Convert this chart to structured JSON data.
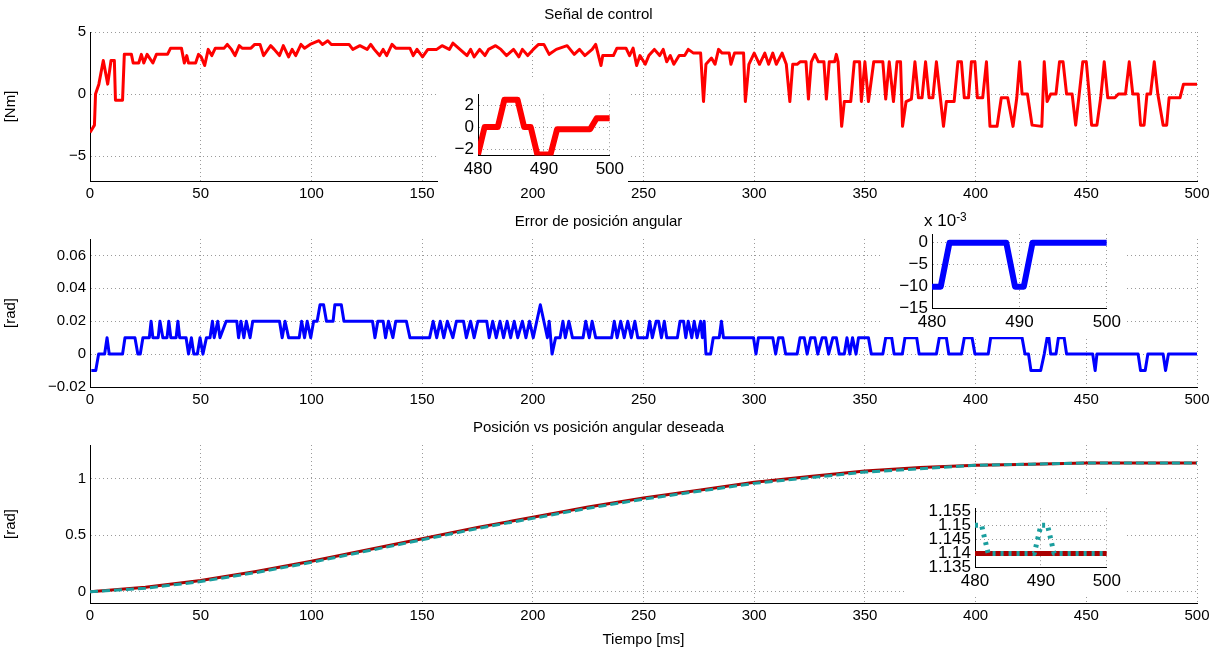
{
  "chart_data": [
    {
      "type": "line",
      "title": "Señal de control",
      "ylabel": "[Nm]",
      "xlim": [
        0,
        500
      ],
      "xticks": [
        0,
        50,
        100,
        150,
        200,
        250,
        300,
        350,
        400,
        450,
        500
      ],
      "ylim": [
        -7,
        5
      ],
      "yticks": [
        -5,
        0,
        5
      ],
      "grid": true,
      "line_style": "solid",
      "series": [
        {
          "color": "#ff0000",
          "x": [
            0,
            2,
            2.5,
            4,
            6,
            8,
            9.5,
            11,
            11.5,
            14.7,
            15.5,
            18.7,
            19.5,
            22,
            23.2,
            24.3,
            25.8,
            28.4,
            30,
            35,
            36.4,
            41.3,
            42.6,
            43.7,
            44.5,
            47.7,
            49,
            50.2,
            51.8,
            53.4,
            55,
            56.6,
            60.6,
            62,
            63.9,
            65.5,
            67.4,
            68.7,
            72.7,
            74.4,
            76.8,
            78.4,
            81.6,
            83.2,
            85.6,
            87.3,
            89.7,
            91.3,
            92.9,
            95.3,
            96.9,
            99.4,
            103.4,
            105,
            107.4,
            109,
            117,
            118.7,
            121.9,
            125.2,
            126.8,
            128.4,
            130.8,
            132.4,
            134,
            136.4,
            138.1,
            144.5,
            146,
            147.7,
            150.2,
            152.6,
            156.6,
            159,
            162.3,
            163.9,
            167.1,
            170.3,
            171.9,
            173.5,
            176,
            178.4,
            180,
            183.2,
            185.6,
            188.1,
            191.3,
            193.7,
            195.3,
            197.7,
            200.2,
            202.6,
            205,
            207.4,
            210.6,
            215.5,
            218.7,
            221.1,
            223.5,
            226.8,
            228.4,
            230.8,
            231.6,
            236.4,
            238,
            242.1,
            243.7,
            245.3,
            246.9,
            248.4,
            250.8,
            252.4,
            254.9,
            257.3,
            258.9,
            260.5,
            262.1,
            263.7,
            266.1,
            268.6,
            270.2,
            272.6,
            275.8,
            277.1,
            278.2,
            280.7,
            282.3,
            283.9,
            285.5,
            288.7,
            289.5,
            291.1,
            295.2,
            296,
            297.6,
            300,
            302.4,
            304.8,
            306.5,
            308.4,
            310,
            312.6,
            314.5,
            316.1,
            317.4,
            319.4,
            320.7,
            323.4,
            324.5,
            325.8,
            327.4,
            329,
            331.5,
            332.6,
            333.9,
            336.3,
            337.1,
            337.9,
            339.5,
            340.7,
            343.6,
            345.2,
            347.6,
            348.4,
            350,
            351.6,
            354,
            358.1,
            359.4,
            361,
            362.9,
            364.5,
            366.1,
            367,
            368.6,
            371,
            372.6,
            374.2,
            375.8,
            377.4,
            379,
            380.7,
            382.3,
            385.5,
            386.8,
            390.3,
            392,
            393.6,
            394.9,
            396.8,
            398.1,
            399.7,
            400.8,
            403.2,
            404.9,
            406.5,
            409.7,
            411.6,
            414.5,
            416.9,
            418.6,
            419.9,
            421,
            423.4,
            425.5,
            429.9,
            431,
            432.3,
            433.9,
            436.3,
            437.9,
            439.5,
            441.1,
            443.6,
            445.2,
            446.8,
            448.4,
            450,
            451.3,
            452.4,
            454.8,
            456.5,
            458.1,
            459.7,
            462.9,
            464.5,
            467.7,
            469.4,
            471,
            473.4,
            474.5,
            476.1,
            477.4,
            479,
            480.7,
            482.3,
            484.7,
            486.3,
            487.4,
            492.3,
            493.9,
            500
          ],
          "values": [
            -3.1,
            -2.5,
            0,
            0.8,
            2.7,
            0.8,
            2.7,
            2.7,
            -0.5,
            -0.5,
            3.2,
            3.2,
            2.5,
            2.5,
            3.2,
            2.5,
            3.2,
            2.5,
            3.2,
            3.2,
            3.7,
            3.7,
            2.5,
            3.1,
            2.5,
            2.5,
            3.2,
            3.0,
            2.3,
            3.6,
            3.1,
            3.7,
            3.7,
            4.0,
            3.6,
            3.1,
            3.9,
            3.7,
            3.7,
            4.0,
            4.0,
            3.1,
            3.9,
            3.6,
            3.1,
            3.9,
            3.0,
            3.6,
            3.1,
            4.0,
            3.7,
            4.0,
            4.3,
            4.0,
            4.3,
            4.0,
            4.0,
            3.6,
            3.9,
            3.6,
            4.0,
            3.6,
            3.1,
            3.6,
            3.1,
            4.0,
            3.7,
            3.7,
            3.1,
            3.6,
            3.0,
            3.6,
            3.6,
            3.9,
            3.6,
            4.1,
            3.6,
            3.1,
            3.6,
            3.0,
            3.6,
            3.1,
            3.6,
            3.9,
            3.6,
            3.1,
            3.6,
            3.0,
            3.6,
            3.1,
            3.6,
            4.0,
            4.0,
            3.2,
            3.6,
            3.9,
            3.2,
            3.6,
            3.1,
            3.6,
            4.0,
            2.3,
            3.1,
            3.1,
            3.7,
            3.7,
            3.1,
            3.7,
            2.3,
            3.1,
            2.4,
            3.1,
            3.6,
            3.1,
            3.6,
            2.6,
            3.1,
            2.4,
            3.1,
            3.1,
            3.6,
            3.3,
            3.3,
            -0.6,
            2.4,
            2.9,
            2.4,
            3.6,
            3.3,
            3.3,
            2.4,
            3.3,
            3.3,
            -0.6,
            2.4,
            3.3,
            2.4,
            3.3,
            2.4,
            3.3,
            2.4,
            3.3,
            2.4,
            -0.6,
            2.4,
            2.4,
            2.6,
            2.6,
            -0.4,
            2.6,
            3.2,
            2.6,
            2.6,
            -0.4,
            2.6,
            2.6,
            3.2,
            2.6,
            -2.6,
            -0.6,
            -0.6,
            2.6,
            2.6,
            -0.6,
            2.6,
            -0.6,
            2.6,
            2.6,
            -0.4,
            2.6,
            -0.6,
            2.6,
            2.6,
            -2.6,
            -0.6,
            -0.4,
            2.6,
            -0.3,
            -0.3,
            2.6,
            -0.3,
            -0.3,
            2.6,
            -2.6,
            -0.6,
            -0.6,
            2.6,
            2.6,
            -0.3,
            -0.3,
            2.6,
            2.6,
            -0.3,
            -0.3,
            2.6,
            -2.6,
            -2.6,
            -0.3,
            -0.3,
            -2.6,
            -0.3,
            2.6,
            0,
            0,
            -2.5,
            -2.6,
            2.6,
            -0.6,
            0,
            0,
            2.6,
            2.6,
            0,
            0,
            -2.5,
            0,
            2.6,
            2.6,
            0,
            -2.5,
            -2.5,
            -0.3,
            2.6,
            -0.3,
            -0.3,
            0,
            0,
            2.6,
            0,
            0,
            -2.5,
            -2.5,
            0,
            0,
            2.6,
            0,
            -2.5,
            -2.5,
            -0.3,
            -0.3,
            0.8,
            0.8
          ]
        }
      ]
    },
    {
      "type": "line",
      "xlim": [
        480,
        500
      ],
      "xticks": [
        480,
        490,
        500
      ],
      "ylim": [
        -2.6,
        3
      ],
      "yticks": [
        -2,
        0,
        2
      ],
      "grid": true,
      "line_style": "solid",
      "series": [
        {
          "color": "#ff0000",
          "x": [
            480,
            481,
            483,
            484,
            486,
            487,
            488,
            489,
            491,
            492,
            497,
            498,
            500
          ],
          "values": [
            -2.5,
            0,
            0,
            2.5,
            2.5,
            0,
            0,
            -2.5,
            -2.5,
            -0.2,
            -0.2,
            0.8,
            0.8
          ]
        }
      ]
    },
    {
      "type": "line",
      "title": "Error de posición angular",
      "ylabel": "[rad]",
      "xlim": [
        0,
        500
      ],
      "xticks": [
        0,
        50,
        100,
        150,
        200,
        250,
        300,
        350,
        400,
        450,
        500
      ],
      "ylim": [
        -0.02,
        0.07
      ],
      "yticks": [
        -0.02,
        0,
        0.02,
        0.04,
        0.06
      ],
      "grid": true,
      "line_style": "solid",
      "series": [
        {
          "color": "#0000ff",
          "x": [
            0.6,
            2.6,
            3.9,
            6.6,
            7.7,
            8.7,
            14.7,
            15.8,
            20.3,
            21.6,
            22.7,
            23.9,
            26.8,
            27.6,
            28.4,
            30.8,
            31.6,
            32.9,
            34.8,
            35.6,
            36.5,
            38.9,
            39.7,
            40.5,
            43.4,
            44.5,
            45.8,
            46.9,
            48.5,
            49.7,
            51,
            52.6,
            54.2,
            55.3,
            56.1,
            57.7,
            58.7,
            61.5,
            66.3,
            67.1,
            68.2,
            69.5,
            70.6,
            72.3,
            73.5,
            85.6,
            86.8,
            88.1,
            89.7,
            94.5,
            95.6,
            96.9,
            98.1,
            99.7,
            101,
            102.6,
            103.9,
            105.5,
            106.8,
            109.8,
            110.6,
            113.5,
            114.7,
            127.6,
            128.7,
            130,
            132.4,
            133.5,
            134.8,
            136.8,
            138.1,
            142.9,
            144.5,
            153.4,
            155,
            156.6,
            158.2,
            159.8,
            161.4,
            163.9,
            165.5,
            168.7,
            170,
            171.9,
            173.5,
            175.2,
            179.2,
            180.3,
            181.9,
            183.5,
            185.2,
            186.8,
            188.4,
            190,
            191.6,
            193.2,
            195.3,
            196.9,
            198.5,
            200.2,
            201.8,
            203.4,
            205,
            206.6,
            207.4,
            208.7,
            210.3,
            212.3,
            213.6,
            214.7,
            216.3,
            217.9,
            222.7,
            223.9,
            225.5,
            226.8,
            228.4,
            235.6,
            236.8,
            238.1,
            239.7,
            241.3,
            242.9,
            244.5,
            246.1,
            247.4,
            248.4,
            251.6,
            252.8,
            254,
            255.7,
            256.8,
            258.1,
            259.4,
            260.5,
            265.3,
            266.5,
            268.1,
            269.1,
            270.2,
            271.8,
            272.9,
            274.2,
            275.8,
            276.6,
            277.4,
            278.2,
            280.3,
            281.5,
            284.2,
            285.2,
            286.1,
            299.7,
            300.8,
            301.9,
            308.4,
            309.7,
            311,
            312.9,
            314.2,
            319.4,
            320.7,
            322.6,
            323.9,
            325.5,
            327.4,
            328.7,
            330.7,
            332.3,
            333.6,
            335.5,
            337.1,
            338.4,
            340.7,
            341.9,
            343.2,
            344.4,
            346,
            347.1,
            351.6,
            352.9,
            358.1,
            359.4,
            362.1,
            363.2,
            366.9,
            368.1,
            373.4,
            374.5,
            382.3,
            383.6,
            386.8,
            387.9,
            393.6,
            394.9,
            398.4,
            399.7,
            405.7,
            406.8,
            421,
            422.3,
            423.9,
            425,
            429.4,
            431,
            432.3,
            433.1,
            433.9,
            436.3,
            437.4,
            440,
            441.1,
            452.9,
            454,
            454.8,
            473.4,
            474.5,
            476.6,
            477.8,
            484.7,
            485.8,
            487.1,
            495.2,
            500
          ],
          "values": [
            -0.01,
            -0.01,
            0,
            0,
            0.01,
            0,
            0,
            0.01,
            0.01,
            0,
            0,
            0.01,
            0.01,
            0.02,
            0.01,
            0.01,
            0.02,
            0.01,
            0.01,
            0.02,
            0.01,
            0.01,
            0.02,
            0.01,
            0.01,
            0,
            0.01,
            0,
            0,
            0.01,
            0,
            0.01,
            0.01,
            0.02,
            0.01,
            0.02,
            0.01,
            0.02,
            0.02,
            0.01,
            0.02,
            0.01,
            0.02,
            0.01,
            0.02,
            0.02,
            0.01,
            0.02,
            0.01,
            0.01,
            0.02,
            0.01,
            0.02,
            0.01,
            0.02,
            0.02,
            0.03,
            0.03,
            0.02,
            0.02,
            0.03,
            0.03,
            0.02,
            0.02,
            0.01,
            0.02,
            0.02,
            0.01,
            0.02,
            0.01,
            0.02,
            0.02,
            0.01,
            0.01,
            0.02,
            0.01,
            0.02,
            0.01,
            0.02,
            0.01,
            0.02,
            0.02,
            0.01,
            0.02,
            0.01,
            0.02,
            0.02,
            0.01,
            0.02,
            0.01,
            0.02,
            0.01,
            0.02,
            0.01,
            0.02,
            0.01,
            0.02,
            0.01,
            0.02,
            0.01,
            0.02,
            0.03,
            0.02,
            0.01,
            0.02,
            0,
            0.01,
            0.01,
            0.02,
            0.01,
            0.02,
            0.01,
            0.01,
            0.02,
            0.01,
            0.02,
            0.01,
            0.01,
            0.02,
            0.01,
            0.02,
            0.01,
            0.02,
            0.01,
            0.02,
            0.01,
            0.01,
            0.01,
            0.02,
            0.01,
            0.02,
            0.02,
            0.01,
            0.02,
            0.01,
            0.01,
            0.02,
            0.02,
            0.01,
            0.02,
            0.01,
            0.02,
            0.01,
            0.02,
            0.01,
            0.02,
            0,
            0,
            0.01,
            0.01,
            0.02,
            0.01,
            0.01,
            0,
            0.01,
            0.01,
            0,
            0.01,
            0.01,
            0,
            0,
            0.01,
            0.01,
            0,
            0.01,
            0.01,
            0,
            0.01,
            0.01,
            0,
            0.01,
            0.01,
            0,
            0,
            0.01,
            0,
            0.01,
            0,
            0.01,
            0.01,
            0,
            0,
            0.01,
            0.01,
            0,
            0,
            0.01,
            0.01,
            0,
            0,
            0.01,
            0.01,
            0,
            0,
            0.01,
            0.01,
            0,
            0,
            0.01,
            0.01,
            0,
            0,
            -0.01,
            -0.01,
            0,
            0.01,
            0.01,
            0,
            0,
            0.01,
            0.01,
            0,
            0,
            -0.01,
            0,
            0,
            -0.01,
            -0.01,
            0,
            0,
            -0.01,
            0,
            0,
            0
          ]
        }
      ]
    },
    {
      "type": "line",
      "annotations": [
        "x 10$^{-3}$"
      ],
      "xlim": [
        480,
        500
      ],
      "xticks": [
        480,
        490,
        500
      ],
      "ylim": [
        -15,
        2
      ],
      "yticks": [
        -15,
        -10,
        -5,
        0
      ],
      "grid": true,
      "line_style": "solid",
      "series": [
        {
          "color": "#0000ff",
          "x": [
            480,
            481,
            482,
            488.5,
            489.5,
            490.5,
            491.5,
            500
          ],
          "values": [
            -10,
            -10,
            0,
            0,
            -10,
            -10,
            0,
            0
          ]
        }
      ]
    },
    {
      "type": "line",
      "title": "Posición vs posición angular deseada",
      "xlabel": "Tiempo [ms]",
      "ylabel": "[rad]",
      "xlim": [
        0,
        500
      ],
      "xticks": [
        0,
        50,
        100,
        150,
        200,
        250,
        300,
        350,
        400,
        450,
        500
      ],
      "ylim": [
        -0.1,
        1.3
      ],
      "yticks": [
        0,
        0.5,
        1
      ],
      "grid": true,
      "series": [
        {
          "color": "#aa0000",
          "line_style": "solid",
          "x": [
            0,
            25,
            50,
            75,
            100,
            125,
            150,
            175,
            200,
            225,
            250,
            275,
            300,
            325,
            350,
            375,
            400,
            425,
            450,
            475,
            500
          ],
          "values": [
            0,
            0.04,
            0.1,
            0.18,
            0.27,
            0.37,
            0.47,
            0.57,
            0.66,
            0.75,
            0.83,
            0.9,
            0.97,
            1.02,
            1.07,
            1.1,
            1.12,
            1.13,
            1.14,
            1.14,
            1.14
          ]
        },
        {
          "color": "#1a9e9e",
          "line_style": "dashed",
          "x": [
            0,
            25,
            50,
            75,
            100,
            125,
            150,
            175,
            200,
            225,
            250,
            275,
            300,
            325,
            350,
            375,
            400,
            425,
            450,
            475,
            500
          ],
          "values": [
            0,
            0.03,
            0.09,
            0.17,
            0.26,
            0.36,
            0.46,
            0.56,
            0.65,
            0.74,
            0.82,
            0.89,
            0.96,
            1.01,
            1.06,
            1.09,
            1.12,
            1.13,
            1.14,
            1.14,
            1.14
          ]
        }
      ]
    },
    {
      "type": "line",
      "xlim": [
        480,
        500
      ],
      "xticks": [
        480,
        490,
        500
      ],
      "ylim": [
        1.135,
        1.156
      ],
      "yticks": [
        1.135,
        1.14,
        1.145,
        1.15,
        1.155
      ],
      "grid": true,
      "series": [
        {
          "color": "#aa0000",
          "line_style": "solid",
          "x": [
            480,
            500
          ],
          "values": [
            1.14,
            1.14
          ]
        },
        {
          "color": "#1a9e9e",
          "line_style": "dotted",
          "x": [
            480,
            481,
            482,
            489,
            490,
            491,
            492,
            500
          ],
          "values": [
            1.15,
            1.15,
            1.14,
            1.14,
            1.15,
            1.15,
            1.14,
            1.14
          ]
        }
      ]
    }
  ]
}
